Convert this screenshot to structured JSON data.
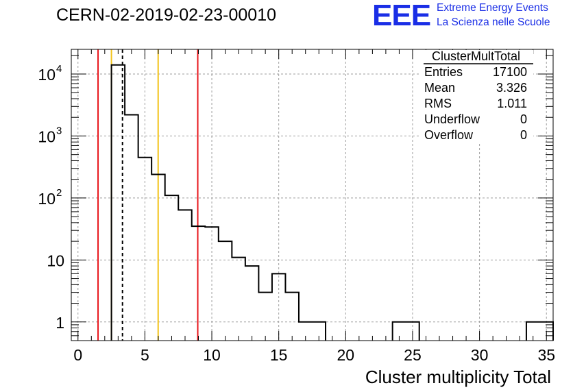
{
  "header": {
    "title": "CERN-02-2019-02-23-00010",
    "logo_text": "EEE",
    "brand_line1": "Extreme Energy Events",
    "brand_line2": "La Scienza nelle Scuole"
  },
  "colors": {
    "histogram": "#000000",
    "red_line": "#e8151b",
    "yellow_line": "#f2c31a",
    "grid": "#9e9e9e",
    "brand": "#1a2ee6"
  },
  "stats_box": {
    "title": "ClusterMultTotal",
    "rows": [
      {
        "label": "Entries",
        "value": "17100"
      },
      {
        "label": "Mean",
        "value": "3.326"
      },
      {
        "label": "RMS",
        "value": "1.011"
      },
      {
        "label": "Underflow",
        "value": "0"
      },
      {
        "label": "Overflow",
        "value": "0"
      }
    ]
  },
  "chart_data": {
    "type": "bar",
    "title": "CERN-02-2019-02-23-00010",
    "xlabel": "Cluster multiplicity Total",
    "ylabel": "",
    "xlim": [
      -0.5,
      35.5
    ],
    "ylim": [
      0.5,
      25000
    ],
    "yscale": "log",
    "grid": true,
    "x_ticks": [
      0,
      5,
      10,
      15,
      20,
      25,
      30,
      35
    ],
    "y_ticks": [
      {
        "value": 1,
        "label": "1"
      },
      {
        "value": 10,
        "label": "10"
      },
      {
        "value": 100,
        "label": "10",
        "exp": "2"
      },
      {
        "value": 1000,
        "label": "10",
        "exp": "3"
      },
      {
        "value": 10000,
        "label": "10",
        "exp": "4"
      }
    ],
    "bins": [
      {
        "low": 2.5,
        "high": 3.5,
        "count": 14000
      },
      {
        "low": 3.5,
        "high": 4.5,
        "count": 2200
      },
      {
        "low": 4.5,
        "high": 5.5,
        "count": 450
      },
      {
        "low": 5.5,
        "high": 6.5,
        "count": 240
      },
      {
        "low": 6.5,
        "high": 7.5,
        "count": 110
      },
      {
        "low": 7.5,
        "high": 8.5,
        "count": 64
      },
      {
        "low": 8.5,
        "high": 9.5,
        "count": 35
      },
      {
        "low": 9.5,
        "high": 10.5,
        "count": 34
      },
      {
        "low": 10.5,
        "high": 11.5,
        "count": 20
      },
      {
        "low": 11.5,
        "high": 12.5,
        "count": 11
      },
      {
        "low": 12.5,
        "high": 13.5,
        "count": 8
      },
      {
        "low": 13.5,
        "high": 14.5,
        "count": 3
      },
      {
        "low": 14.5,
        "high": 15.5,
        "count": 6
      },
      {
        "low": 15.5,
        "high": 16.5,
        "count": 3
      },
      {
        "low": 16.5,
        "high": 17.5,
        "count": 1
      },
      {
        "low": 17.5,
        "high": 18.5,
        "count": 1
      },
      {
        "low": 23.5,
        "high": 24.5,
        "count": 1
      },
      {
        "low": 24.5,
        "high": 25.5,
        "count": 1
      },
      {
        "low": 33.5,
        "high": 34.5,
        "count": 1
      },
      {
        "low": 34.5,
        "high": 35.5,
        "count": 1
      }
    ],
    "markers": [
      {
        "x": 1.5,
        "color": "red",
        "style": "solid"
      },
      {
        "x": 2.5,
        "color": "yellow",
        "style": "solid"
      },
      {
        "x": 3.326,
        "color": "black",
        "style": "dashed"
      },
      {
        "x": 5.99,
        "color": "yellow",
        "style": "solid"
      },
      {
        "x": 8.95,
        "color": "red",
        "style": "solid"
      }
    ]
  }
}
